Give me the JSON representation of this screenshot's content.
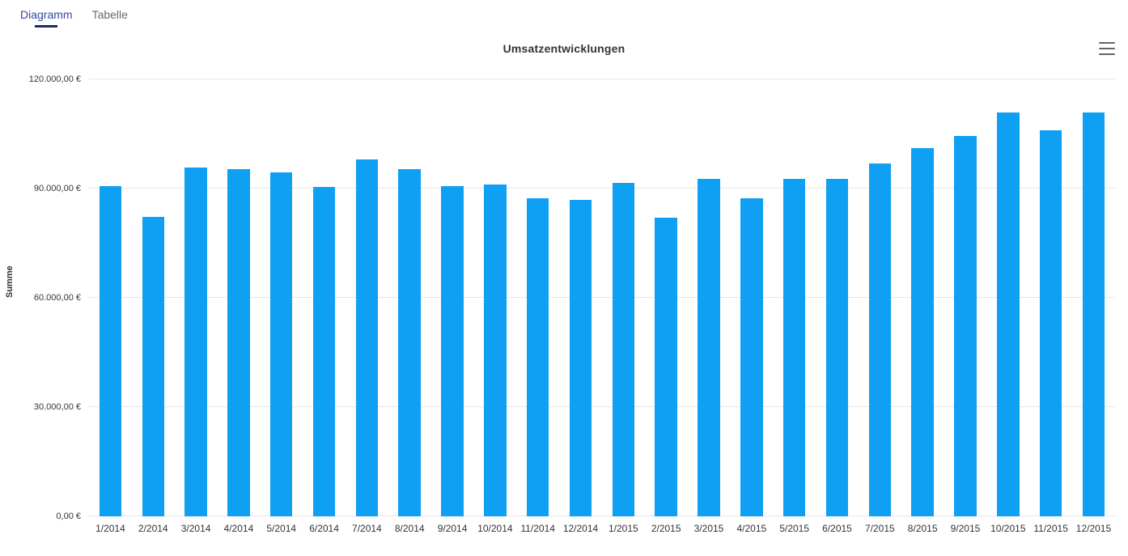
{
  "tabs": [
    {
      "label": "Diagramm",
      "active": true
    },
    {
      "label": "Tabelle",
      "active": false
    }
  ],
  "menu_icon": "hamburger-icon",
  "colors": {
    "bar": "#0f9ff3",
    "active_tab_text": "#32479e",
    "active_tab_underline": "#1d2b66",
    "gridline": "#e6e6e6"
  },
  "chart_data": {
    "type": "bar",
    "title": "Umsatzentwicklungen",
    "xlabel": "",
    "ylabel": "Summe",
    "ylim": [
      0,
      120000
    ],
    "grid": true,
    "legend": false,
    "categories": [
      "1/2014",
      "2/2014",
      "3/2014",
      "4/2014",
      "5/2014",
      "6/2014",
      "7/2014",
      "8/2014",
      "9/2014",
      "10/2014",
      "11/2014",
      "12/2014",
      "1/2015",
      "2/2015",
      "3/2015",
      "4/2015",
      "5/2015",
      "6/2015",
      "7/2015",
      "8/2015",
      "9/2015",
      "10/2015",
      "11/2015",
      "12/2015"
    ],
    "values": [
      90600,
      82200,
      95800,
      95300,
      94400,
      90400,
      97900,
      95400,
      90700,
      91200,
      87400,
      86900,
      91500,
      81900,
      92700,
      87400,
      92600,
      92700,
      96900,
      101200,
      104400,
      111000,
      106100,
      110800
    ],
    "yticks": [
      {
        "value": 0,
        "label": "0,00 €"
      },
      {
        "value": 30000,
        "label": "30.000,00 €"
      },
      {
        "value": 60000,
        "label": "60.000,00 €"
      },
      {
        "value": 90000,
        "label": "90.000,00 €"
      },
      {
        "value": 120000,
        "label": "120.000,00 €"
      }
    ]
  }
}
